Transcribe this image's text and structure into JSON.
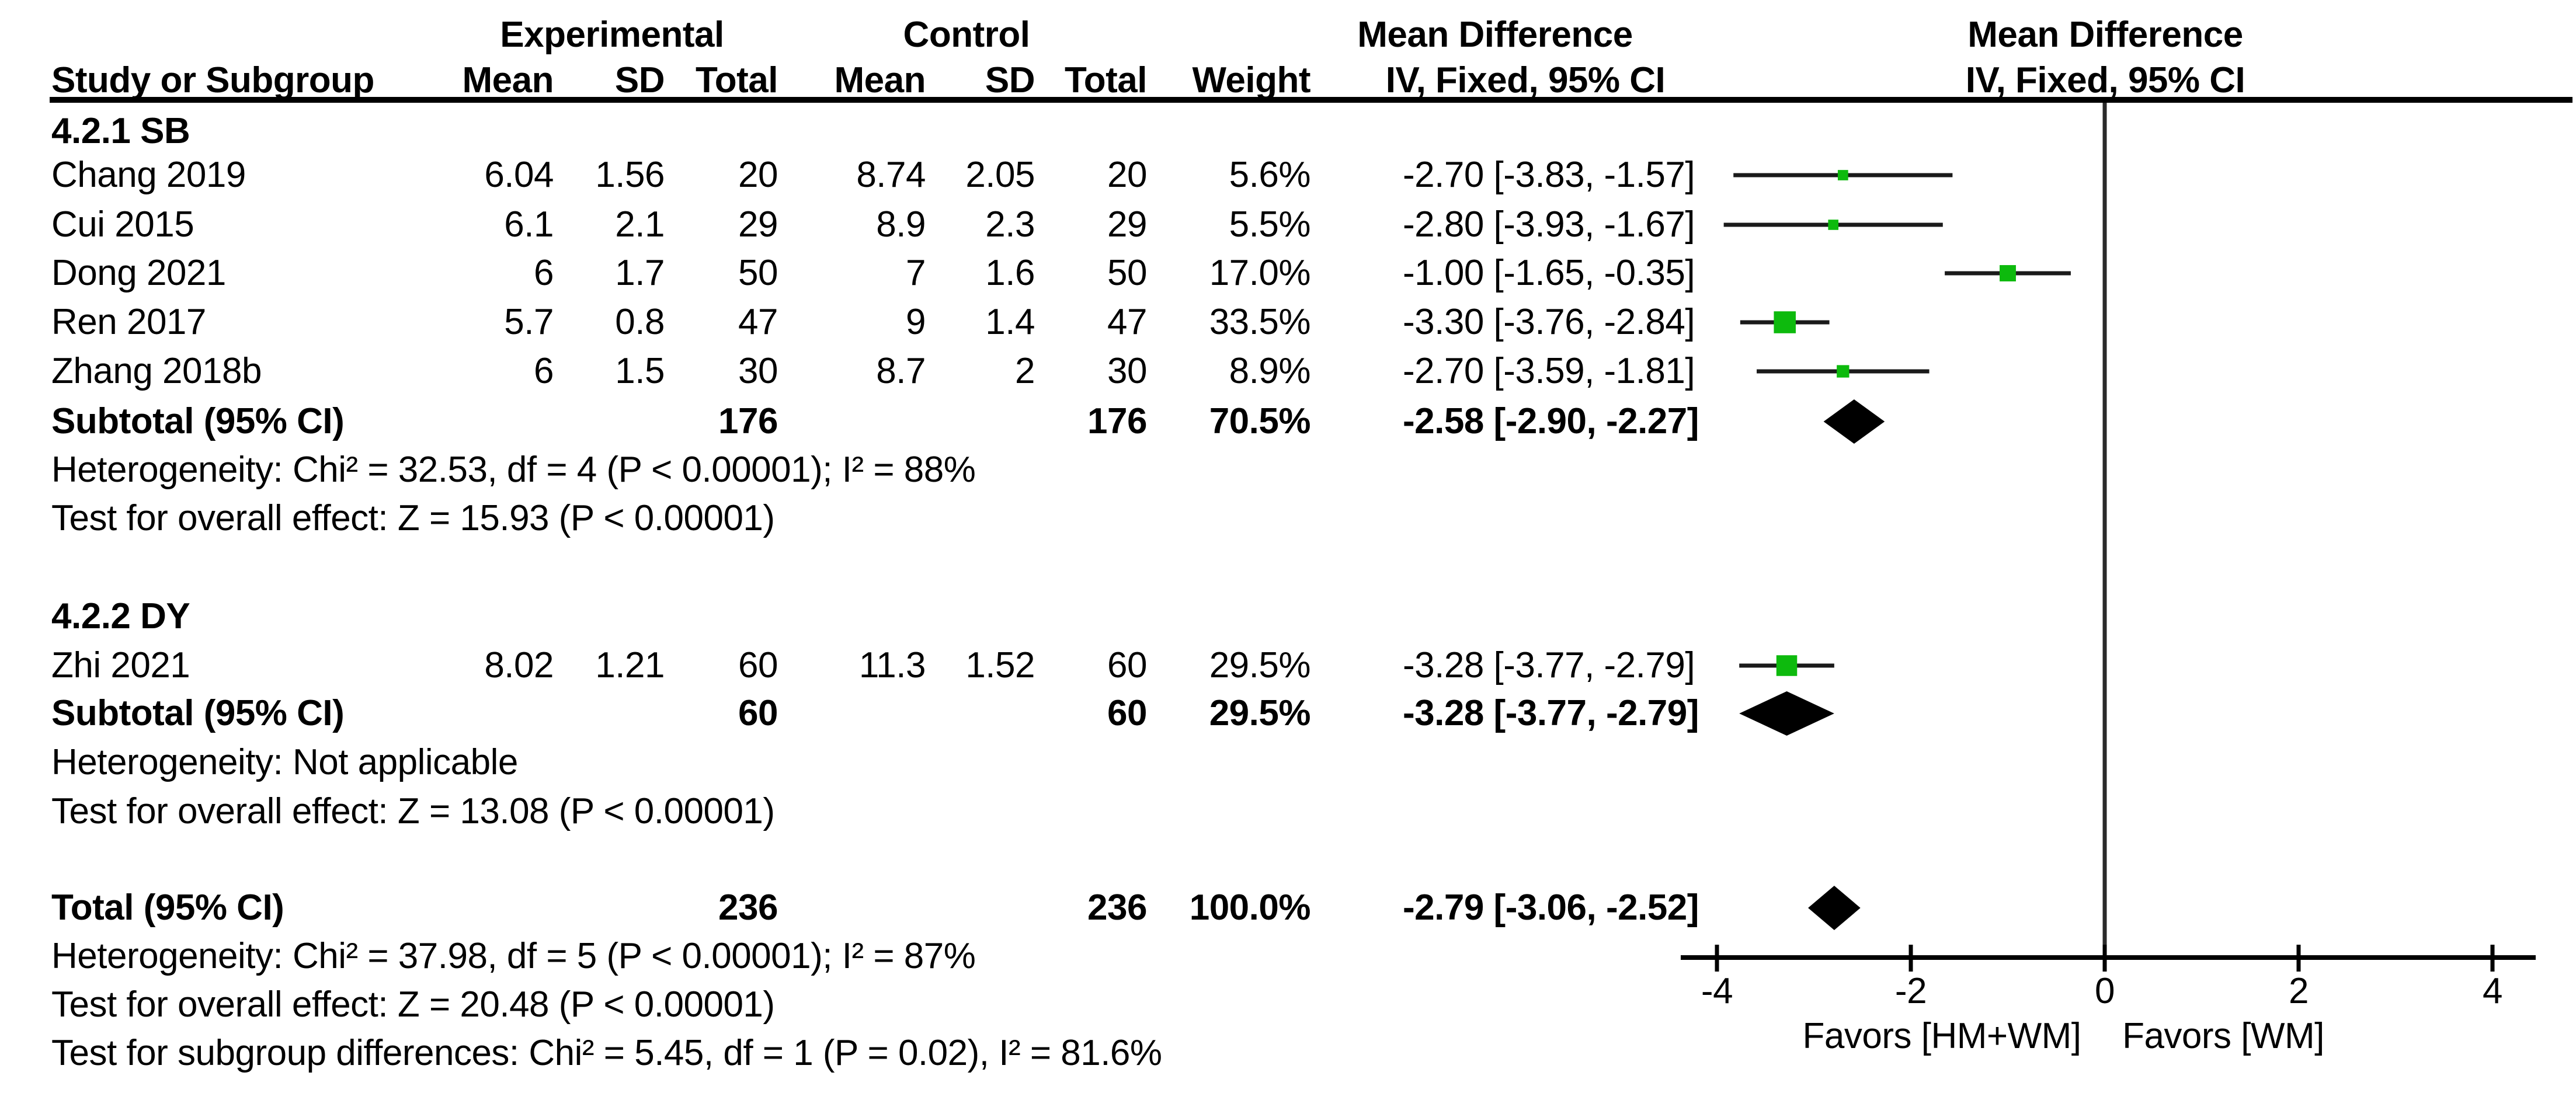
{
  "headers": {
    "group": {
      "experimental": "Experimental",
      "control": "Control",
      "mean_difference_left": "Mean Difference",
      "mean_difference_right": "Mean Difference"
    },
    "columns": {
      "study": "Study or Subgroup",
      "mean_e": "Mean",
      "sd_e": "SD",
      "total_e": "Total",
      "mean_c": "Mean",
      "sd_c": "SD",
      "total_c": "Total",
      "weight": "Weight",
      "iv_left": "IV, Fixed, 95% CI",
      "iv_right": "IV, Fixed, 95% CI"
    }
  },
  "sections": [
    {
      "title": "4.2.1 SB",
      "studies": [
        {
          "label": "Chang 2019",
          "mean_e": "6.04",
          "sd_e": "1.56",
          "total_e": "20",
          "mean_c": "8.74",
          "sd_c": "2.05",
          "total_c": "20",
          "weight": "5.6%",
          "ci_text": "-2.70 [-3.83, -1.57]",
          "est": -2.7,
          "lo": -3.83,
          "hi": -1.57,
          "w": 5.6
        },
        {
          "label": "Cui 2015",
          "mean_e": "6.1",
          "sd_e": "2.1",
          "total_e": "29",
          "mean_c": "8.9",
          "sd_c": "2.3",
          "total_c": "29",
          "weight": "5.5%",
          "ci_text": "-2.80 [-3.93, -1.67]",
          "est": -2.8,
          "lo": -3.93,
          "hi": -1.67,
          "w": 5.5
        },
        {
          "label": "Dong 2021",
          "mean_e": "6",
          "sd_e": "1.7",
          "total_e": "50",
          "mean_c": "7",
          "sd_c": "1.6",
          "total_c": "50",
          "weight": "17.0%",
          "ci_text": "-1.00 [-1.65, -0.35]",
          "est": -1.0,
          "lo": -1.65,
          "hi": -0.35,
          "w": 17.0
        },
        {
          "label": "Ren 2017",
          "mean_e": "5.7",
          "sd_e": "0.8",
          "total_e": "47",
          "mean_c": "9",
          "sd_c": "1.4",
          "total_c": "47",
          "weight": "33.5%",
          "ci_text": "-3.30 [-3.76, -2.84]",
          "est": -3.3,
          "lo": -3.76,
          "hi": -2.84,
          "w": 33.5
        },
        {
          "label": "Zhang 2018b",
          "mean_e": "6",
          "sd_e": "1.5",
          "total_e": "30",
          "mean_c": "8.7",
          "sd_c": "2",
          "total_c": "30",
          "weight": "8.9%",
          "ci_text": "-2.70 [-3.59, -1.81]",
          "est": -2.7,
          "lo": -3.59,
          "hi": -1.81,
          "w": 8.9
        }
      ],
      "subtotal": {
        "label": "Subtotal (95% CI)",
        "total_e": "176",
        "total_c": "176",
        "weight": "70.5%",
        "ci_text": "-2.58 [-2.90, -2.27]",
        "est": -2.58,
        "lo": -2.9,
        "hi": -2.27
      },
      "notes": [
        "Heterogeneity: Chi² = 32.53, df = 4 (P < 0.00001); I² = 88%",
        "Test for overall effect: Z = 15.93 (P < 0.00001)"
      ]
    },
    {
      "title": "4.2.2 DY",
      "studies": [
        {
          "label": "Zhi 2021",
          "mean_e": "8.02",
          "sd_e": "1.21",
          "total_e": "60",
          "mean_c": "11.3",
          "sd_c": "1.52",
          "total_c": "60",
          "weight": "29.5%",
          "ci_text": "-3.28 [-3.77, -2.79]",
          "est": -3.28,
          "lo": -3.77,
          "hi": -2.79,
          "w": 29.5
        }
      ],
      "subtotal": {
        "label": "Subtotal (95% CI)",
        "total_e": "60",
        "total_c": "60",
        "weight": "29.5%",
        "ci_text": "-3.28 [-3.77, -2.79]",
        "est": -3.28,
        "lo": -3.77,
        "hi": -2.79
      },
      "notes": [
        "Heterogeneity: Not applicable",
        "Test for overall effect: Z = 13.08 (P < 0.00001)"
      ]
    }
  ],
  "total": {
    "row": {
      "label": "Total (95% CI)",
      "total_e": "236",
      "total_c": "236",
      "weight": "100.0%",
      "ci_text": "-2.79 [-3.06, -2.52]",
      "est": -2.79,
      "lo": -3.06,
      "hi": -2.52
    },
    "notes": [
      "Heterogeneity: Chi² = 37.98, df = 5 (P < 0.00001); I² = 87%",
      "Test for overall effect: Z = 20.48 (P < 0.00001)",
      "Test for subgroup differences: Chi² = 5.45, df = 1 (P = 0.02), I² = 81.6%"
    ]
  },
  "axis": {
    "ticks": [
      "-4",
      "-2",
      "0",
      "2",
      "4"
    ],
    "tick_values": [
      -4,
      -2,
      0,
      2,
      4
    ],
    "favors_left": "Favors [HM+WM]",
    "favors_right": "Favors [WM]"
  },
  "colors": {
    "marker_green": "#0dba0d",
    "ink": "#000000"
  },
  "chart_data": {
    "type": "scatter",
    "subtype": "forest_plot",
    "title": "Mean Difference, IV, Fixed, 95% CI",
    "xlabel_left": "Favors [HM+WM]",
    "xlabel_right": "Favors [WM]",
    "xlim": [
      -4,
      4
    ],
    "x_ticks": [
      -4,
      -2,
      0,
      2,
      4
    ],
    "groups": [
      {
        "name": "4.2.1 SB",
        "studies": [
          {
            "study": "Chang 2019",
            "mean_exp": 6.04,
            "sd_exp": 1.56,
            "n_exp": 20,
            "mean_ctl": 8.74,
            "sd_ctl": 2.05,
            "n_ctl": 20,
            "weight_pct": 5.6,
            "md": -2.7,
            "ci": [
              -3.83,
              -1.57
            ]
          },
          {
            "study": "Cui 2015",
            "mean_exp": 6.1,
            "sd_exp": 2.1,
            "n_exp": 29,
            "mean_ctl": 8.9,
            "sd_ctl": 2.3,
            "n_ctl": 29,
            "weight_pct": 5.5,
            "md": -2.8,
            "ci": [
              -3.93,
              -1.67
            ]
          },
          {
            "study": "Dong 2021",
            "mean_exp": 6,
            "sd_exp": 1.7,
            "n_exp": 50,
            "mean_ctl": 7,
            "sd_ctl": 1.6,
            "n_ctl": 50,
            "weight_pct": 17.0,
            "md": -1.0,
            "ci": [
              -1.65,
              -0.35
            ]
          },
          {
            "study": "Ren 2017",
            "mean_exp": 5.7,
            "sd_exp": 0.8,
            "n_exp": 47,
            "mean_ctl": 9,
            "sd_ctl": 1.4,
            "n_ctl": 47,
            "weight_pct": 33.5,
            "md": -3.3,
            "ci": [
              -3.76,
              -2.84
            ]
          },
          {
            "study": "Zhang 2018b",
            "mean_exp": 6,
            "sd_exp": 1.5,
            "n_exp": 30,
            "mean_ctl": 8.7,
            "sd_ctl": 2,
            "n_ctl": 30,
            "weight_pct": 8.9,
            "md": -2.7,
            "ci": [
              -3.59,
              -1.81
            ]
          }
        ],
        "subtotal": {
          "n_exp": 176,
          "n_ctl": 176,
          "weight_pct": 70.5,
          "md": -2.58,
          "ci": [
            -2.9,
            -2.27
          ]
        },
        "heterogeneity": "Chi² = 32.53, df = 4 (P < 0.00001); I² = 88%",
        "overall_effect": "Z = 15.93 (P < 0.00001)"
      },
      {
        "name": "4.2.2 DY",
        "studies": [
          {
            "study": "Zhi 2021",
            "mean_exp": 8.02,
            "sd_exp": 1.21,
            "n_exp": 60,
            "mean_ctl": 11.3,
            "sd_ctl": 1.52,
            "n_ctl": 60,
            "weight_pct": 29.5,
            "md": -3.28,
            "ci": [
              -3.77,
              -2.79
            ]
          }
        ],
        "subtotal": {
          "n_exp": 60,
          "n_ctl": 60,
          "weight_pct": 29.5,
          "md": -3.28,
          "ci": [
            -3.77,
            -2.79
          ]
        },
        "heterogeneity": "Not applicable",
        "overall_effect": "Z = 13.08 (P < 0.00001)"
      }
    ],
    "total": {
      "n_exp": 236,
      "n_ctl": 236,
      "weight_pct": 100.0,
      "md": -2.79,
      "ci": [
        -3.06,
        -2.52
      ],
      "heterogeneity": "Chi² = 37.98, df = 5 (P < 0.00001); I² = 87%",
      "overall_effect": "Z = 20.48 (P < 0.00001)",
      "subgroup_differences": "Chi² = 5.45, df = 1 (P = 0.02), I² = 81.6%"
    }
  }
}
